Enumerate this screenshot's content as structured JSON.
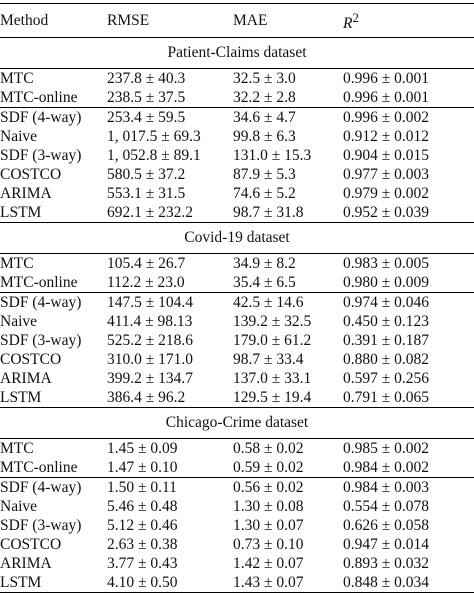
{
  "header": {
    "method": "Method",
    "rmse": "RMSE",
    "mae": "MAE",
    "r2_base": "R",
    "r2_sup": "2"
  },
  "sections": [
    {
      "title": "Patient-Claims dataset",
      "rows": [
        {
          "method": "MTC",
          "rmse": "237.8 ± 40.3",
          "mae": "32.5 ± 3.0",
          "r2": "0.996 ± 0.001"
        },
        {
          "method": "MTC-online",
          "rmse": "238.5 ± 37.5",
          "mae": "32.2 ± 2.8",
          "r2": "0.996 ± 0.001"
        },
        {
          "method": "SDF (4-way)",
          "rmse": "253.4 ± 59.5",
          "mae": "34.6 ± 4.7",
          "r2": "0.996 ± 0.002"
        },
        {
          "method": "Naive",
          "rmse": "1, 017.5 ± 69.3",
          "mae": "99.8 ± 6.3",
          "r2": "0.912 ± 0.012"
        },
        {
          "method": "SDF (3-way)",
          "rmse": "1, 052.8 ± 89.1",
          "mae": "131.0 ± 15.3",
          "r2": "0.904 ± 0.015"
        },
        {
          "method": "COSTCO",
          "rmse": "580.5 ± 37.2",
          "mae": "87.9 ± 5.3",
          "r2": "0.977 ± 0.003"
        },
        {
          "method": "ARIMA",
          "rmse": "553.1 ± 31.5",
          "mae": "74.6 ± 5.2",
          "r2": "0.979 ± 0.002"
        },
        {
          "method": "LSTM",
          "rmse": "692.1 ± 232.2",
          "mae": "98.7 ± 31.8",
          "r2": "0.952 ± 0.039"
        }
      ]
    },
    {
      "title": "Covid-19 dataset",
      "rows": [
        {
          "method": "MTC",
          "rmse": "105.4 ± 26.7",
          "mae": "34.9 ± 8.2",
          "r2": "0.983 ± 0.005"
        },
        {
          "method": "MTC-online",
          "rmse": "112.2 ± 23.0",
          "mae": "35.4 ± 6.5",
          "r2": "0.980 ± 0.009"
        },
        {
          "method": "SDF (4-way)",
          "rmse": "147.5 ± 104.4",
          "mae": "42.5 ± 14.6",
          "r2": "0.974 ± 0.046"
        },
        {
          "method": "Naive",
          "rmse": "411.4 ± 98.13",
          "mae": "139.2 ± 32.5",
          "r2": "0.450 ± 0.123"
        },
        {
          "method": "SDF (3-way)",
          "rmse": "525.2 ± 218.6",
          "mae": "179.0 ± 61.2",
          "r2": "0.391 ± 0.187"
        },
        {
          "method": "COSTCO",
          "rmse": "310.0 ± 171.0",
          "mae": "98.7 ± 33.4",
          "r2": "0.880 ± 0.082"
        },
        {
          "method": "ARIMA",
          "rmse": "399.2 ± 134.7",
          "mae": "137.0 ± 33.1",
          "r2": "0.597 ± 0.256"
        },
        {
          "method": "LSTM",
          "rmse": "386.4 ± 96.2",
          "mae": "129.5 ± 19.4",
          "r2": "0.791 ± 0.065"
        }
      ]
    },
    {
      "title": "Chicago-Crime dataset",
      "rows": [
        {
          "method": "MTC",
          "rmse": "1.45 ± 0.09",
          "mae": "0.58 ± 0.02",
          "r2": "0.985 ± 0.002"
        },
        {
          "method": "MTC-online",
          "rmse": "1.47 ± 0.10",
          "mae": "0.59 ± 0.02",
          "r2": "0.984 ± 0.002"
        },
        {
          "method": "SDF (4-way)",
          "rmse": "1.50 ± 0.11",
          "mae": "0.56 ± 0.02",
          "r2": "0.984 ± 0.003"
        },
        {
          "method": "Naive",
          "rmse": "5.46 ± 0.48",
          "mae": "1.30 ± 0.08",
          "r2": "0.554 ± 0.078"
        },
        {
          "method": "SDF (3-way)",
          "rmse": "5.12 ± 0.46",
          "mae": "1.30 ± 0.07",
          "r2": "0.626 ± 0.058"
        },
        {
          "method": "COSTCO",
          "rmse": "2.63 ± 0.38",
          "mae": "0.73 ± 0.10",
          "r2": "0.947 ± 0.014"
        },
        {
          "method": "ARIMA",
          "rmse": "3.77 ± 0.43",
          "mae": "1.42 ± 0.07",
          "r2": "0.893 ± 0.032"
        },
        {
          "method": "LSTM",
          "rmse": "4.10 ± 0.50",
          "mae": "1.43 ± 0.07",
          "r2": "0.848 ± 0.034"
        }
      ]
    }
  ]
}
